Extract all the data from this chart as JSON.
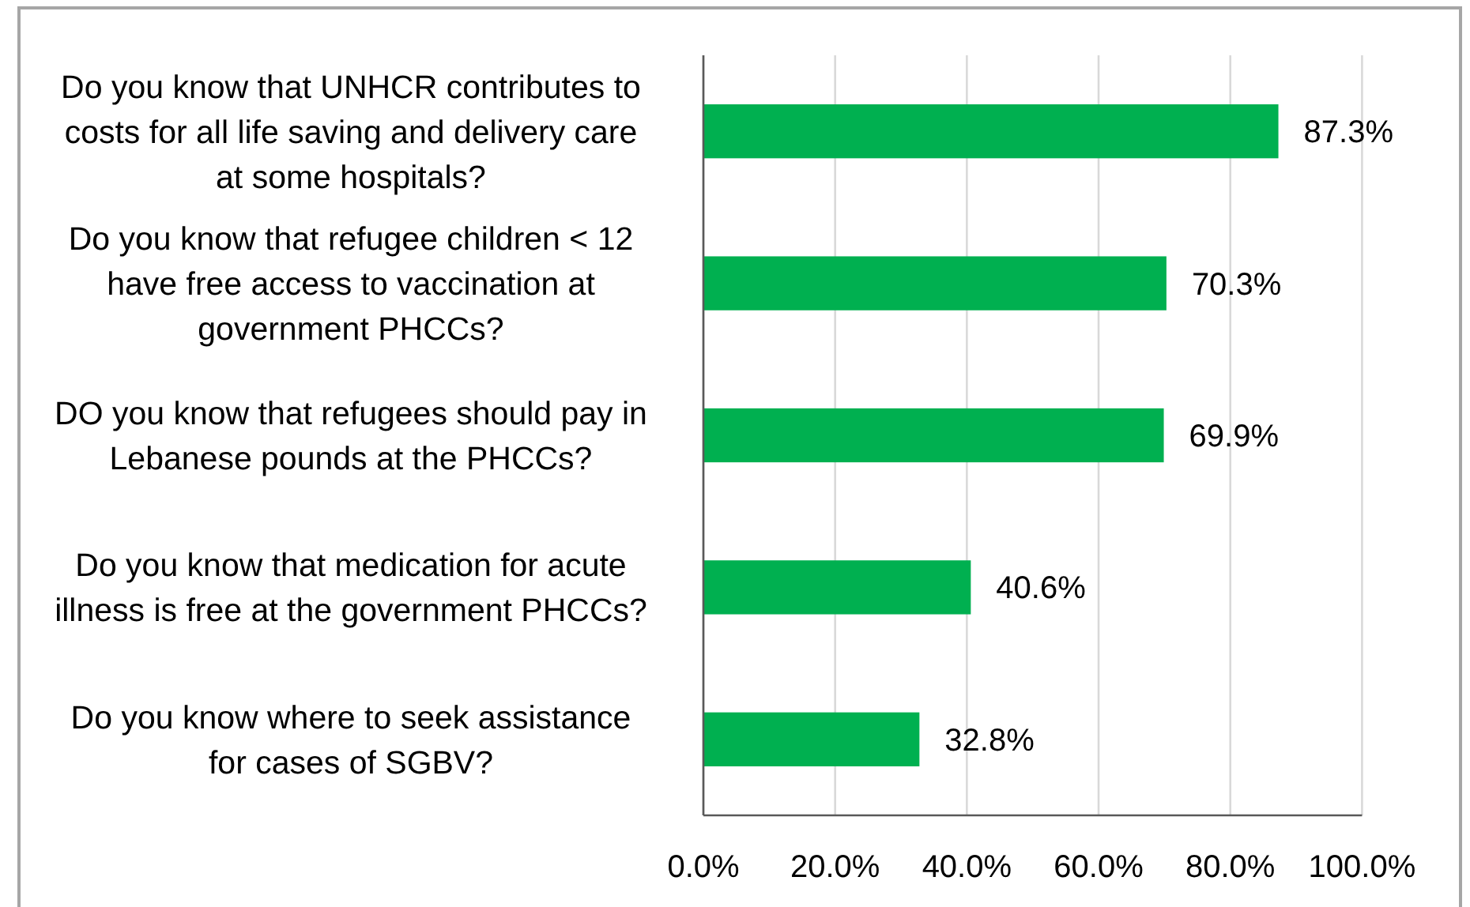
{
  "chart_data": {
    "type": "bar",
    "orientation": "horizontal",
    "categories": [
      "Do you know that UNHCR contributes to costs for all life saving and delivery care at some hospitals?",
      "Do you know that refugee children < 12 have free access to vaccination at government PHCCs?",
      "DO you know that refugees should pay in Lebanese pounds at the PHCCs?",
      "Do you know that medication for acute illness is free at the government PHCCs?",
      "Do you know where to seek assistance for cases of SGBV?"
    ],
    "values": [
      87.3,
      70.3,
      69.9,
      40.6,
      32.8
    ],
    "value_labels": [
      "87.3%",
      "70.3%",
      "69.9%",
      "40.6%",
      "32.8%"
    ],
    "color": "#00b050",
    "xlim": [
      0,
      100
    ],
    "xticks": [
      {
        "value": 0,
        "label": "0.0%"
      },
      {
        "value": 20,
        "label": "20.0%"
      },
      {
        "value": 40,
        "label": "40.0%"
      },
      {
        "value": 60,
        "label": "60.0%"
      },
      {
        "value": 80,
        "label": "80.0%"
      },
      {
        "value": 100,
        "label": "100.0%"
      }
    ],
    "grid": "x"
  }
}
